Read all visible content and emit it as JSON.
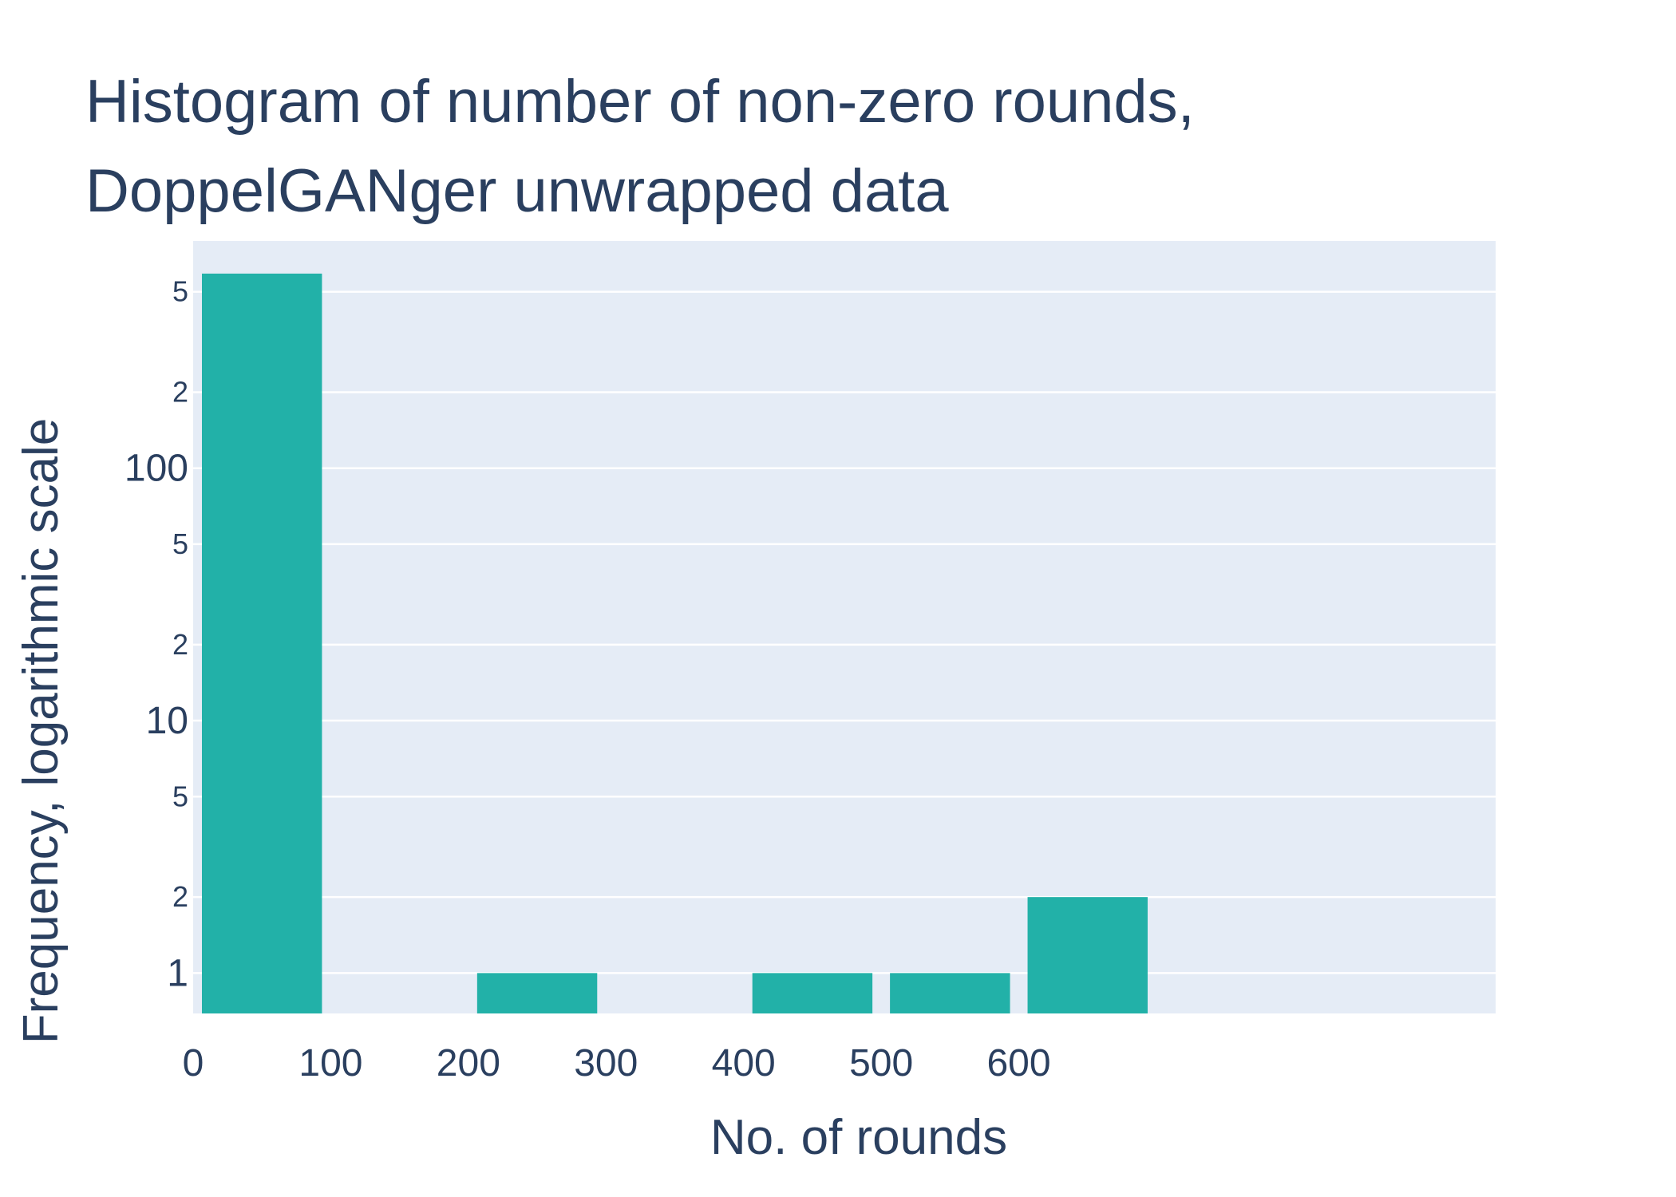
{
  "chart_data": {
    "type": "bar",
    "title_lines": [
      "Histogram of number of non-zero rounds,",
      "DoppelGANger unwrapped data"
    ],
    "xlabel": "No. of rounds",
    "ylabel": "Frequency, logarithmic scale",
    "x_ticks": [
      0,
      100,
      200,
      300,
      400,
      500,
      600
    ],
    "y_scale": "log",
    "y_major_ticks": [
      {
        "value": 1,
        "label": "1"
      },
      {
        "value": 10,
        "label": "10"
      },
      {
        "value": 100,
        "label": "100"
      }
    ],
    "y_minor_ticks": [
      {
        "value": 2,
        "label": "2"
      },
      {
        "value": 5,
        "label": "5"
      },
      {
        "value": 20,
        "label": "2"
      },
      {
        "value": 50,
        "label": "5"
      },
      {
        "value": 200,
        "label": "2"
      },
      {
        "value": 500,
        "label": "5"
      }
    ],
    "xlim": [
      0,
      700
    ],
    "ylim_log10": [
      -0.16,
      2.9
    ],
    "bins": [
      {
        "x0": 0,
        "x1": 100,
        "count": 590
      },
      {
        "x0": 200,
        "x1": 300,
        "count": 1
      },
      {
        "x0": 400,
        "x1": 500,
        "count": 1
      },
      {
        "x0": 500,
        "x1": 600,
        "count": 1
      },
      {
        "x0": 600,
        "x1": 700,
        "count": 2
      }
    ],
    "grid": true,
    "colors": {
      "bar": "#22b1a8",
      "plot_bg": "#e5ecf6",
      "grid": "#ffffff",
      "text": "#2a3f5f"
    }
  }
}
